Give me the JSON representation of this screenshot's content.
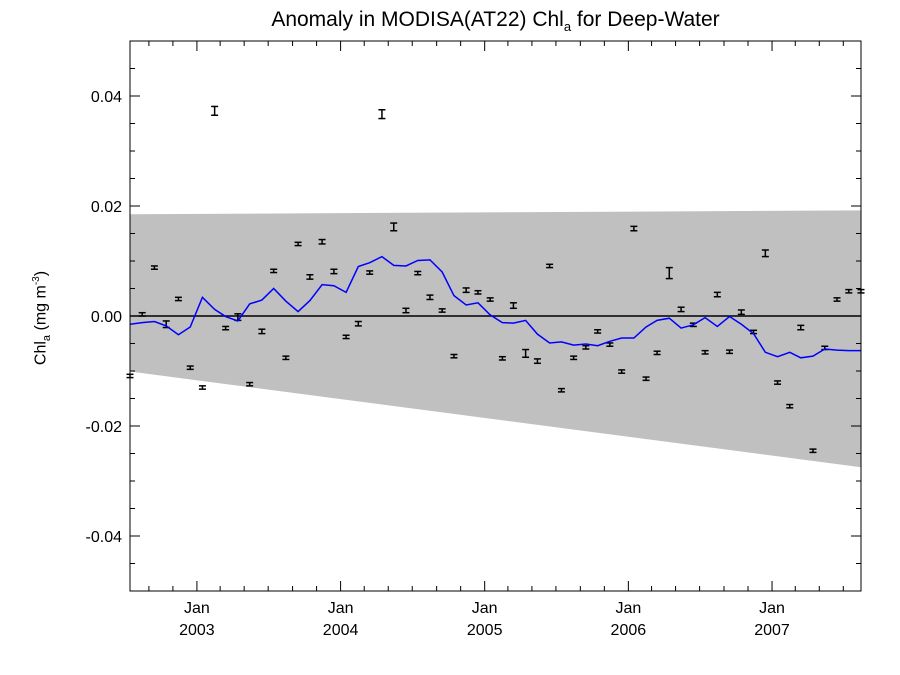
{
  "chart_data": {
    "type": "scatter",
    "title": {
      "prefix": "Anomaly in MODISA(AT22) Chl",
      "subscript": "a",
      "suffix": " for Deep-Water"
    },
    "ylabel": {
      "prefix": "Chl",
      "subscript": "a",
      "middle": " (mg m",
      "superscript": "-3",
      "suffix": ")"
    },
    "xlim": [
      "2002-07-15",
      "2007-08-15"
    ],
    "ylim": [
      -0.05,
      0.05
    ],
    "y_ticks": [
      -0.04,
      -0.02,
      0.0,
      0.02,
      0.04
    ],
    "y_tick_labels": [
      "-0.04",
      "-0.02",
      "0.00",
      "0.02",
      "0.04"
    ],
    "x_tick_dates": [
      "2003-01-01",
      "2004-01-01",
      "2005-01-01",
      "2006-01-01",
      "2007-01-01"
    ],
    "x_tick_labels": [
      {
        "month": "Jan",
        "year": "2003"
      },
      {
        "month": "Jan",
        "year": "2004"
      },
      {
        "month": "Jan",
        "year": "2005"
      },
      {
        "month": "Jan",
        "year": "2006"
      },
      {
        "month": "Jan",
        "year": "2007"
      }
    ],
    "grid": false,
    "band": {
      "color": "#c0c0c0",
      "start": {
        "date": "2002-07-15",
        "upper": 0.0185,
        "lower": -0.0101
      },
      "end": {
        "date": "2007-08-15",
        "upper": 0.0192,
        "lower": -0.0275
      }
    },
    "zero_line": {
      "value": 0.0,
      "color": "#000000"
    },
    "points": {
      "color": "#000000",
      "dates": [
        "2002-07-15",
        "2002-08-15",
        "2002-09-15",
        "2002-10-15",
        "2002-11-15",
        "2002-12-15",
        "2003-01-15",
        "2003-02-15",
        "2003-03-15",
        "2003-04-15",
        "2003-05-15",
        "2003-06-15",
        "2003-07-15",
        "2003-08-15",
        "2003-09-15",
        "2003-10-15",
        "2003-11-15",
        "2003-12-15",
        "2004-01-15",
        "2004-02-15",
        "2004-03-15",
        "2004-04-15",
        "2004-05-15",
        "2004-06-15",
        "2004-07-15",
        "2004-08-15",
        "2004-09-15",
        "2004-10-15",
        "2004-11-15",
        "2004-12-15",
        "2005-01-15",
        "2005-02-15",
        "2005-03-15",
        "2005-04-15",
        "2005-05-15",
        "2005-06-15",
        "2005-07-15",
        "2005-08-15",
        "2005-09-15",
        "2005-10-15",
        "2005-11-15",
        "2005-12-15",
        "2006-01-15",
        "2006-02-15",
        "2006-03-15",
        "2006-04-15",
        "2006-05-15",
        "2006-06-15",
        "2006-07-15",
        "2006-08-15",
        "2006-09-15",
        "2006-10-15",
        "2006-11-15",
        "2006-12-15",
        "2007-01-15",
        "2007-02-15",
        "2007-03-15",
        "2007-04-15",
        "2007-05-15",
        "2007-06-15",
        "2007-07-15",
        "2007-08-15"
      ],
      "values": [
        -0.0109,
        0.0003,
        0.0088,
        -0.0015,
        0.0031,
        -0.0094,
        -0.013,
        0.0373,
        -0.0022,
        -0.0002,
        -0.0124,
        -0.0028,
        0.0082,
        -0.0076,
        0.0131,
        0.0071,
        0.0135,
        0.0081,
        -0.0038,
        -0.0014,
        0.0079,
        0.0367,
        0.0162,
        0.001,
        0.0078,
        0.0034,
        0.001,
        -0.0073,
        0.0047,
        0.0043,
        0.003,
        -0.0077,
        0.0019,
        -0.0068,
        -0.0082,
        0.0091,
        -0.0135,
        -0.0076,
        -0.0057,
        -0.0028,
        -0.0052,
        -0.0101,
        0.0159,
        -0.0114,
        -0.0067,
        0.0078,
        0.0012,
        -0.0016,
        -0.0066,
        0.0039,
        -0.0065,
        0.0007,
        -0.0029,
        0.0114,
        -0.0121,
        -0.0164,
        -0.0021,
        -0.0245,
        -0.0058,
        0.003,
        0.0045,
        0.0045
      ],
      "errors": [
        0.0003,
        0.0003,
        0.0003,
        0.0006,
        0.0003,
        0.0003,
        0.0003,
        0.0008,
        0.0003,
        0.0006,
        0.0003,
        0.0004,
        0.0003,
        0.0003,
        0.0003,
        0.0004,
        0.0004,
        0.0004,
        0.0003,
        0.0004,
        0.0003,
        0.0008,
        0.0007,
        0.0004,
        0.0003,
        0.0004,
        0.0003,
        0.0003,
        0.0004,
        0.0003,
        0.0003,
        0.0003,
        0.0005,
        0.0007,
        0.0004,
        0.0003,
        0.0003,
        0.0003,
        0.0003,
        0.0003,
        0.0003,
        0.0003,
        0.0004,
        0.0003,
        0.0003,
        0.001,
        0.0004,
        0.0003,
        0.0003,
        0.0004,
        0.0003,
        0.0004,
        0.0003,
        0.0006,
        0.0003,
        0.0003,
        0.0004,
        0.0003,
        0.0003,
        0.0003,
        0.0003,
        0.0003
      ]
    },
    "smooth_line": {
      "color": "#0000ff",
      "dates": [
        "2002-07-15",
        "2002-08-15",
        "2002-09-15",
        "2002-10-15",
        "2002-11-15",
        "2002-12-15",
        "2003-01-15",
        "2003-02-15",
        "2003-03-15",
        "2003-04-15",
        "2003-05-15",
        "2003-06-15",
        "2003-07-15",
        "2003-08-15",
        "2003-09-15",
        "2003-10-15",
        "2003-11-15",
        "2003-12-15",
        "2004-01-15",
        "2004-02-15",
        "2004-03-15",
        "2004-04-15",
        "2004-05-15",
        "2004-06-15",
        "2004-07-15",
        "2004-08-15",
        "2004-09-15",
        "2004-10-15",
        "2004-11-15",
        "2004-12-15",
        "2005-01-15",
        "2005-02-15",
        "2005-03-15",
        "2005-04-15",
        "2005-05-15",
        "2005-06-15",
        "2005-07-15",
        "2005-08-15",
        "2005-09-15",
        "2005-10-15",
        "2005-11-15",
        "2005-12-15",
        "2006-01-15",
        "2006-02-15",
        "2006-03-15",
        "2006-04-15",
        "2006-05-15",
        "2006-06-15",
        "2006-07-15",
        "2006-08-15",
        "2006-09-15",
        "2006-10-15",
        "2006-11-15",
        "2006-12-15",
        "2007-01-15",
        "2007-02-15",
        "2007-03-15",
        "2007-04-15",
        "2007-05-15",
        "2007-06-15",
        "2007-07-15",
        "2007-08-15"
      ],
      "values": [
        -0.0015,
        -0.0012,
        -0.001,
        -0.0018,
        -0.0034,
        -0.002,
        0.0034,
        0.0012,
        -0.0001,
        -0.0009,
        0.0022,
        0.0029,
        0.005,
        0.0027,
        0.0008,
        0.0028,
        0.0057,
        0.0055,
        0.0043,
        0.009,
        0.0097,
        0.0108,
        0.0092,
        0.0091,
        0.0101,
        0.0102,
        0.008,
        0.0037,
        0.002,
        0.0024,
        0.0002,
        -0.0012,
        -0.0013,
        -0.0008,
        -0.0033,
        -0.0049,
        -0.0047,
        -0.0053,
        -0.0051,
        -0.0054,
        -0.0046,
        -0.004,
        -0.004,
        -0.002,
        -0.0008,
        -0.0004,
        -0.0022,
        -0.0016,
        -0.0003,
        -0.0019,
        -0.0001,
        -0.0015,
        -0.0032,
        -0.0066,
        -0.0074,
        -0.0066,
        -0.0076,
        -0.0073,
        -0.006,
        -0.0062,
        -0.0063,
        -0.0063
      ]
    }
  }
}
